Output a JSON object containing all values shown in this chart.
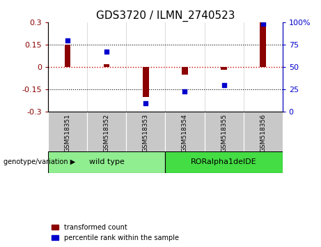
{
  "title": "GDS3720 / ILMN_2740523",
  "samples": [
    "GSM518351",
    "GSM518352",
    "GSM518353",
    "GSM518354",
    "GSM518355",
    "GSM518356"
  ],
  "red_bars": [
    0.15,
    0.02,
    -0.2,
    -0.05,
    -0.02,
    0.3
  ],
  "blue_dots": [
    80,
    67,
    10,
    23,
    30,
    98
  ],
  "ylim_left": [
    -0.3,
    0.3
  ],
  "ylim_right": [
    0,
    100
  ],
  "yticks_left": [
    -0.3,
    -0.15,
    0,
    0.15,
    0.3
  ],
  "yticks_right": [
    0,
    25,
    50,
    75,
    100
  ],
  "ytick_labels_left": [
    "-0.3",
    "-0.15",
    "0",
    "0.15",
    "0.3"
  ],
  "ytick_labels_right": [
    "0",
    "25",
    "50",
    "75",
    "100%"
  ],
  "genotype_groups": [
    {
      "label": "wild type",
      "start": 0,
      "end": 2,
      "color": "#90EE90"
    },
    {
      "label": "RORalpha1delDE",
      "start": 3,
      "end": 5,
      "color": "#44DD44"
    }
  ],
  "bar_color": "#8B0000",
  "dot_color": "#0000CC",
  "zero_line_color": "#CC0000",
  "dotted_line_color": "#000000",
  "bg_color": "#FFFFFF",
  "plot_bg": "#FFFFFF",
  "label_bg": "#C8C8C8",
  "genotype_label": "genotype/variation",
  "legend_red": "transformed count",
  "legend_blue": "percentile rank within the sample",
  "title_fontsize": 11,
  "tick_fontsize": 8,
  "bar_width": 0.15
}
